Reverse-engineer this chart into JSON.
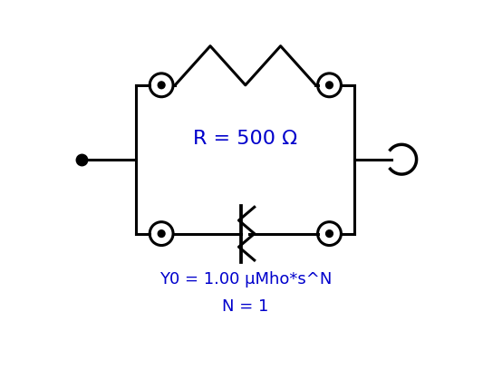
{
  "bg_color": "#ffffff",
  "line_color": "#000000",
  "text_color": "#0000cc",
  "label_R": "R = 500 Ω",
  "label_Y0": "Y0 = 1.00 μMho*s^N",
  "label_N": "N = 1",
  "fig_width": 5.33,
  "fig_height": 4.31,
  "dpi": 100
}
